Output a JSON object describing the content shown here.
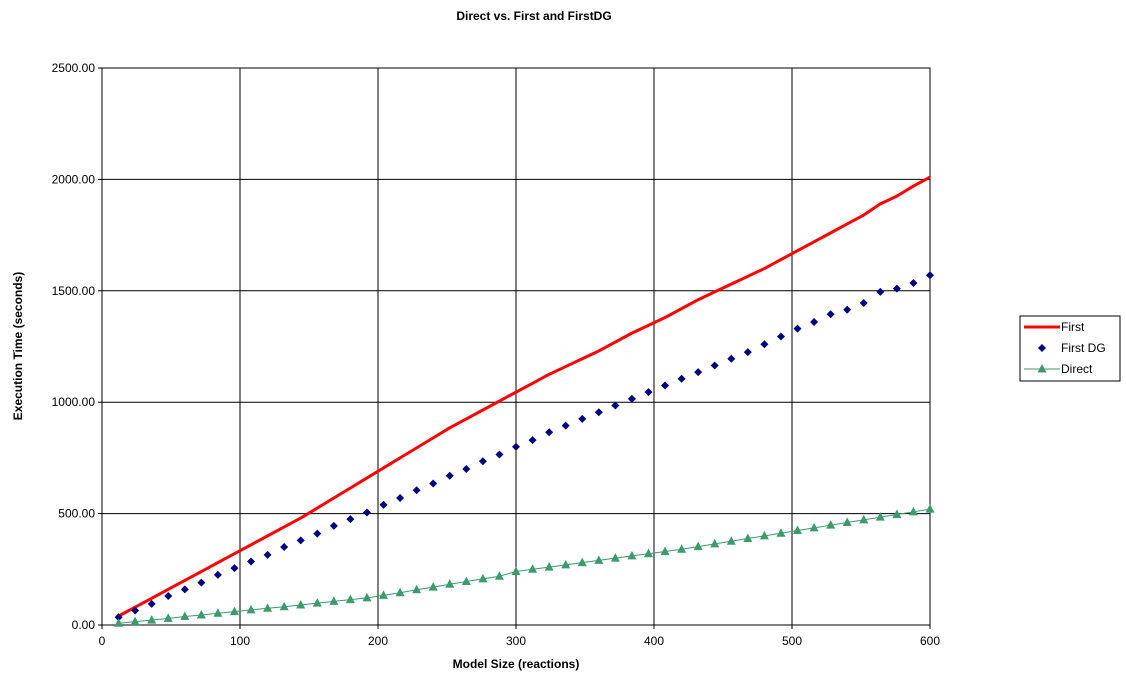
{
  "chart_data": {
    "type": "line",
    "title": "Direct vs. First and FirstDG",
    "xlabel": "Model Size (reactions)",
    "ylabel": "Execution Time (seconds)",
    "xlim": [
      0,
      600
    ],
    "ylim": [
      0,
      2500
    ],
    "xticks": [
      0,
      100,
      200,
      300,
      400,
      500,
      600
    ],
    "yticks": [
      "0.00",
      "500.00",
      "1000.00",
      "1500.00",
      "2000.00",
      "2500.00"
    ],
    "grid": true,
    "legend": "right",
    "x": [
      12,
      24,
      36,
      48,
      60,
      72,
      84,
      96,
      108,
      120,
      132,
      144,
      156,
      168,
      180,
      192,
      204,
      216,
      228,
      240,
      252,
      264,
      276,
      288,
      300,
      312,
      324,
      336,
      348,
      360,
      372,
      384,
      396,
      408,
      420,
      432,
      444,
      456,
      468,
      480,
      492,
      504,
      516,
      528,
      540,
      552,
      564,
      576,
      588,
      600
    ],
    "series": [
      {
        "name": "First",
        "color": "#ff0000",
        "marker": "none",
        "values": [
          40,
          80,
          120,
          160,
          200,
          240,
          280,
          320,
          360,
          400,
          440,
          480,
          525,
          570,
          615,
          660,
          705,
          750,
          795,
          840,
          885,
          925,
          965,
          1005,
          1045,
          1085,
          1125,
          1160,
          1195,
          1230,
          1270,
          1310,
          1345,
          1380,
          1420,
          1460,
          1495,
          1530,
          1565,
          1600,
          1640,
          1680,
          1720,
          1760,
          1800,
          1840,
          1890,
          1925,
          1970,
          2010
        ]
      },
      {
        "name": "First DG",
        "color": "#000080",
        "marker": "diamond",
        "values": [
          35,
          65,
          95,
          130,
          160,
          190,
          225,
          255,
          285,
          315,
          350,
          380,
          410,
          445,
          475,
          505,
          540,
          570,
          605,
          635,
          670,
          700,
          735,
          765,
          800,
          830,
          865,
          895,
          925,
          955,
          985,
          1015,
          1045,
          1075,
          1105,
          1135,
          1165,
          1195,
          1225,
          1260,
          1295,
          1330,
          1360,
          1395,
          1415,
          1445,
          1495,
          1510,
          1535,
          1570
        ]
      },
      {
        "name": "Direct",
        "color": "#3c9a6c",
        "marker": "triangle",
        "values": [
          8,
          15,
          22,
          30,
          38,
          45,
          53,
          60,
          68,
          75,
          82,
          90,
          98,
          106,
          114,
          122,
          133,
          145,
          158,
          170,
          183,
          195,
          207,
          219,
          240,
          250,
          260,
          270,
          280,
          290,
          300,
          310,
          320,
          330,
          340,
          352,
          364,
          376,
          388,
          400,
          412,
          424,
          436,
          448,
          460,
          472,
          484,
          496,
          508,
          520
        ]
      }
    ]
  }
}
